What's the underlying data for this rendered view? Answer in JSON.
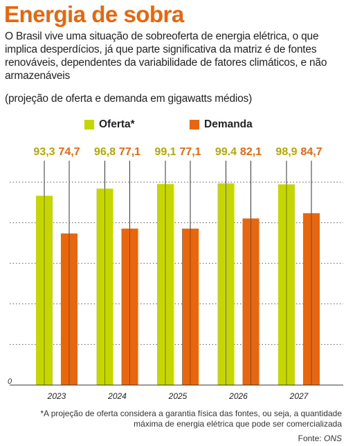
{
  "title": "Energia de sobra",
  "subtitle": "O Brasil vive uma situação de sobreoferta de energia elétrica, o que implica desperdícios, já que parte significativa da matriz é de fontes renováveis, dependentes da variabilidade de fatores climáticos, e não armazenáveis",
  "unit_note": "(projeção de oferta e demanda em gigawatts médios)",
  "footnote": "*A projeção de oferta considera a garantia física das fontes, ou seja, a quantidade máxima de energia elétrica que pode ser comercializada",
  "source_label": "Fonte:",
  "source_name": "ONS",
  "colors": {
    "oferta": "#c5d600",
    "demanda": "#e8660d",
    "oferta_label": "#b5a800",
    "demanda_label": "#e8660d",
    "title": "#e8660d"
  },
  "chart_data": {
    "type": "bar",
    "categories": [
      "2023",
      "2024",
      "2025",
      "2026",
      "2027"
    ],
    "series": [
      {
        "name": "Oferta*",
        "values": [
          93.3,
          96.8,
          99.1,
          99.4,
          98.9
        ],
        "labels": [
          "93,3",
          "96,8",
          "99,1",
          "99.4",
          "98,9"
        ]
      },
      {
        "name": "Demanda",
        "values": [
          74.7,
          77.1,
          77.1,
          82.1,
          84.7
        ],
        "labels": [
          "74,7",
          "77,1",
          "77,1",
          "82,1",
          "84,7"
        ]
      }
    ],
    "ytick_zero": "0",
    "ylim": [
      0,
      120
    ],
    "grid": "dotted",
    "legend": "top-center"
  }
}
